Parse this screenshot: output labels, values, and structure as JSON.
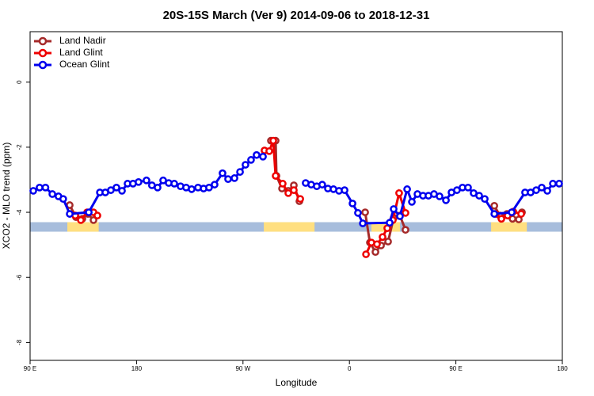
{
  "chart_data": {
    "type": "line",
    "title": "20S-15S March (Ver 9)   2014-09-06 to 2018-12-31",
    "x_label": "Longitude",
    "y_label": "XCO2 - MLO trend (ppm)",
    "xlim": [
      90,
      540
    ],
    "ylim": [
      -8.55,
      1.55
    ],
    "xticks": [
      {
        "value": 90,
        "label": "90 E"
      },
      180,
      {
        "value": 270,
        "label": "90 W"
      },
      {
        "value": 360,
        "label": "0"
      },
      {
        "value": 450,
        "label": "90 E"
      },
      {
        "value": 540,
        "label": "180"
      }
    ],
    "yticks": [
      0,
      -2,
      -4,
      -6,
      -8
    ],
    "legend": "top-left",
    "surface_band": {
      "y": -4.45,
      "ocean_color": "#a7bddc",
      "land_color": "#ffdf80",
      "land": [
        [
          121.5,
          148
        ],
        [
          287.6,
          330.5
        ],
        [
          378.6,
          402.8
        ],
        [
          479.8,
          510
        ]
      ]
    },
    "series": [
      {
        "name": "Land Nadir",
        "color": "#a52a2a",
        "x": [
          123.5,
          128.8,
          134.2,
          138.9,
          143.6,
          null,
          293.6,
          297.6,
          298.3,
          303,
          308.3,
          313,
          317.7,
          null,
          373.3,
          377.3,
          382,
          386.7,
          392.7,
          397.4,
          402.7,
          407.4,
          null,
          482.5,
          487.2,
          493.2,
          497.9,
          503.2,
          505.9
        ],
        "values": [
          -3.78,
          -4.15,
          -4.2,
          -4.05,
          -4.24,
          null,
          -1.8,
          -1.8,
          -2.88,
          -3.27,
          -3.34,
          -3.17,
          -3.66,
          null,
          -4.0,
          -4.93,
          -5.22,
          -5.02,
          -4.9,
          -4.17,
          -4.1,
          -4.54,
          null,
          -3.8,
          -4.1,
          -4.05,
          -4.2,
          -4.22,
          -4.0
        ]
      },
      {
        "name": "Land Glint",
        "color": "#ee0000",
        "x": [
          128.2,
          132.9,
          138.2,
          143.6,
          146.9,
          null,
          288.2,
          292.2,
          295.6,
          297.6,
          303.6,
          308.3,
          313,
          318.4,
          null,
          374,
          378.6,
          383.3,
          388,
          392,
          396.7,
          402,
          407.4,
          null,
          483.8,
          488.5,
          493.8,
          498.5,
          505.2
        ],
        "values": [
          -4.1,
          -4.24,
          -4.0,
          -4.0,
          -4.1,
          null,
          -2.1,
          -2.12,
          -1.8,
          -2.88,
          -3.12,
          -3.41,
          -3.32,
          -3.59,
          null,
          -5.29,
          -4.93,
          -4.98,
          -4.76,
          -4.49,
          -4.24,
          -3.41,
          -4.02,
          null,
          -4.05,
          -4.2,
          -4.1,
          -3.98,
          -4.05
        ]
      },
      {
        "name": "Ocean Glint",
        "color": "#0000ee",
        "x": [
          92.7,
          98,
          103,
          108.8,
          114,
          118,
          123.5,
          139.6,
          149,
          153.6,
          158.3,
          163,
          167.7,
          172.4,
          177,
          181.7,
          188.4,
          193,
          197.8,
          202.5,
          207.2,
          211.9,
          217.2,
          221.9,
          226.6,
          232,
          236.7,
          241.3,
          246,
          252.7,
          257.4,
          262.8,
          267.5,
          272.1,
          276.8,
          281.5,
          286.9,
          null,
          323,
          327.7,
          332.4,
          337,
          341.8,
          346.5,
          351.2,
          355.9,
          362.6,
          367.2,
          371.3,
          394,
          397.4,
          402.7,
          408.8,
          412.8,
          417.5,
          422.2,
          426.8,
          431.5,
          436.2,
          441.6,
          446.3,
          450.9,
          455.6,
          460.3,
          465,
          469.7,
          474.4,
          482.5,
          497.2,
          508.5,
          513.2,
          517.9,
          522.6,
          527.3,
          532,
          537.3
        ],
        "values": [
          -3.34,
          -3.24,
          -3.24,
          -3.44,
          -3.51,
          -3.59,
          -4.05,
          -4.0,
          -3.39,
          -3.39,
          -3.32,
          -3.24,
          -3.34,
          -3.12,
          -3.12,
          -3.07,
          -3.02,
          -3.17,
          -3.24,
          -3.02,
          -3.1,
          -3.12,
          -3.2,
          -3.24,
          -3.29,
          -3.24,
          -3.27,
          -3.24,
          -3.15,
          -2.8,
          -2.98,
          -2.95,
          -2.76,
          -2.54,
          -2.39,
          -2.24,
          -2.29,
          null,
          -3.1,
          -3.15,
          -3.2,
          -3.15,
          -3.27,
          -3.29,
          -3.34,
          -3.32,
          -3.73,
          -4.02,
          -4.34,
          -4.32,
          -3.9,
          -4.12,
          -3.29,
          -3.68,
          -3.44,
          -3.49,
          -3.49,
          -3.44,
          -3.51,
          -3.63,
          -3.39,
          -3.32,
          -3.24,
          -3.24,
          -3.41,
          -3.49,
          -3.59,
          -4.05,
          -4.0,
          -3.39,
          -3.39,
          -3.32,
          -3.24,
          -3.34,
          -3.12,
          -3.12
        ]
      }
    ]
  }
}
